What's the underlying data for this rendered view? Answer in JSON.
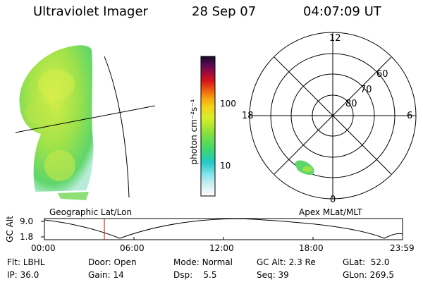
{
  "header": {
    "title": "Ultraviolet Imager",
    "date": "28 Sep 07",
    "time": "04:07:09 UT"
  },
  "colorbar": {
    "label": "photon cm⁻²s⁻¹",
    "ticks": [
      "100",
      "10"
    ]
  },
  "left_panel": {
    "label": "Geographic Lat/Lon"
  },
  "polar_plot": {
    "label": "Apex MLat/MLT",
    "mlt_labels": {
      "top": "12",
      "bottom": "0",
      "left": "18",
      "right": "6"
    },
    "lat_labels": [
      "60",
      "70",
      "80"
    ]
  },
  "altitude_plot": {
    "ylabel": "GC Alt",
    "yticks": [
      "9.0",
      "1.8"
    ],
    "xticks": [
      "00:00",
      "06:00",
      "12:00",
      "18:00",
      "23:59"
    ],
    "marker_color": "#cc0000"
  },
  "status": {
    "flt_label": "Flt:",
    "flt_value": "LBHL",
    "ip_label": "IP:",
    "ip_value": "36.0",
    "door_label": "Door:",
    "door_value": "Open",
    "gain_label": "Gain:",
    "gain_value": "14",
    "mode_label": "Mode:",
    "mode_value": "Normal",
    "dsp_label": "Dsp:",
    "dsp_value": "5.5",
    "gcalt_label": "GC Alt:",
    "gcalt_value": "2.3 Re",
    "seq_label": "Seq:",
    "seq_value": "39",
    "glat_label": "GLat:",
    "glat_value": "52.0",
    "glon_label": "GLon:",
    "glon_value": "269.5"
  }
}
